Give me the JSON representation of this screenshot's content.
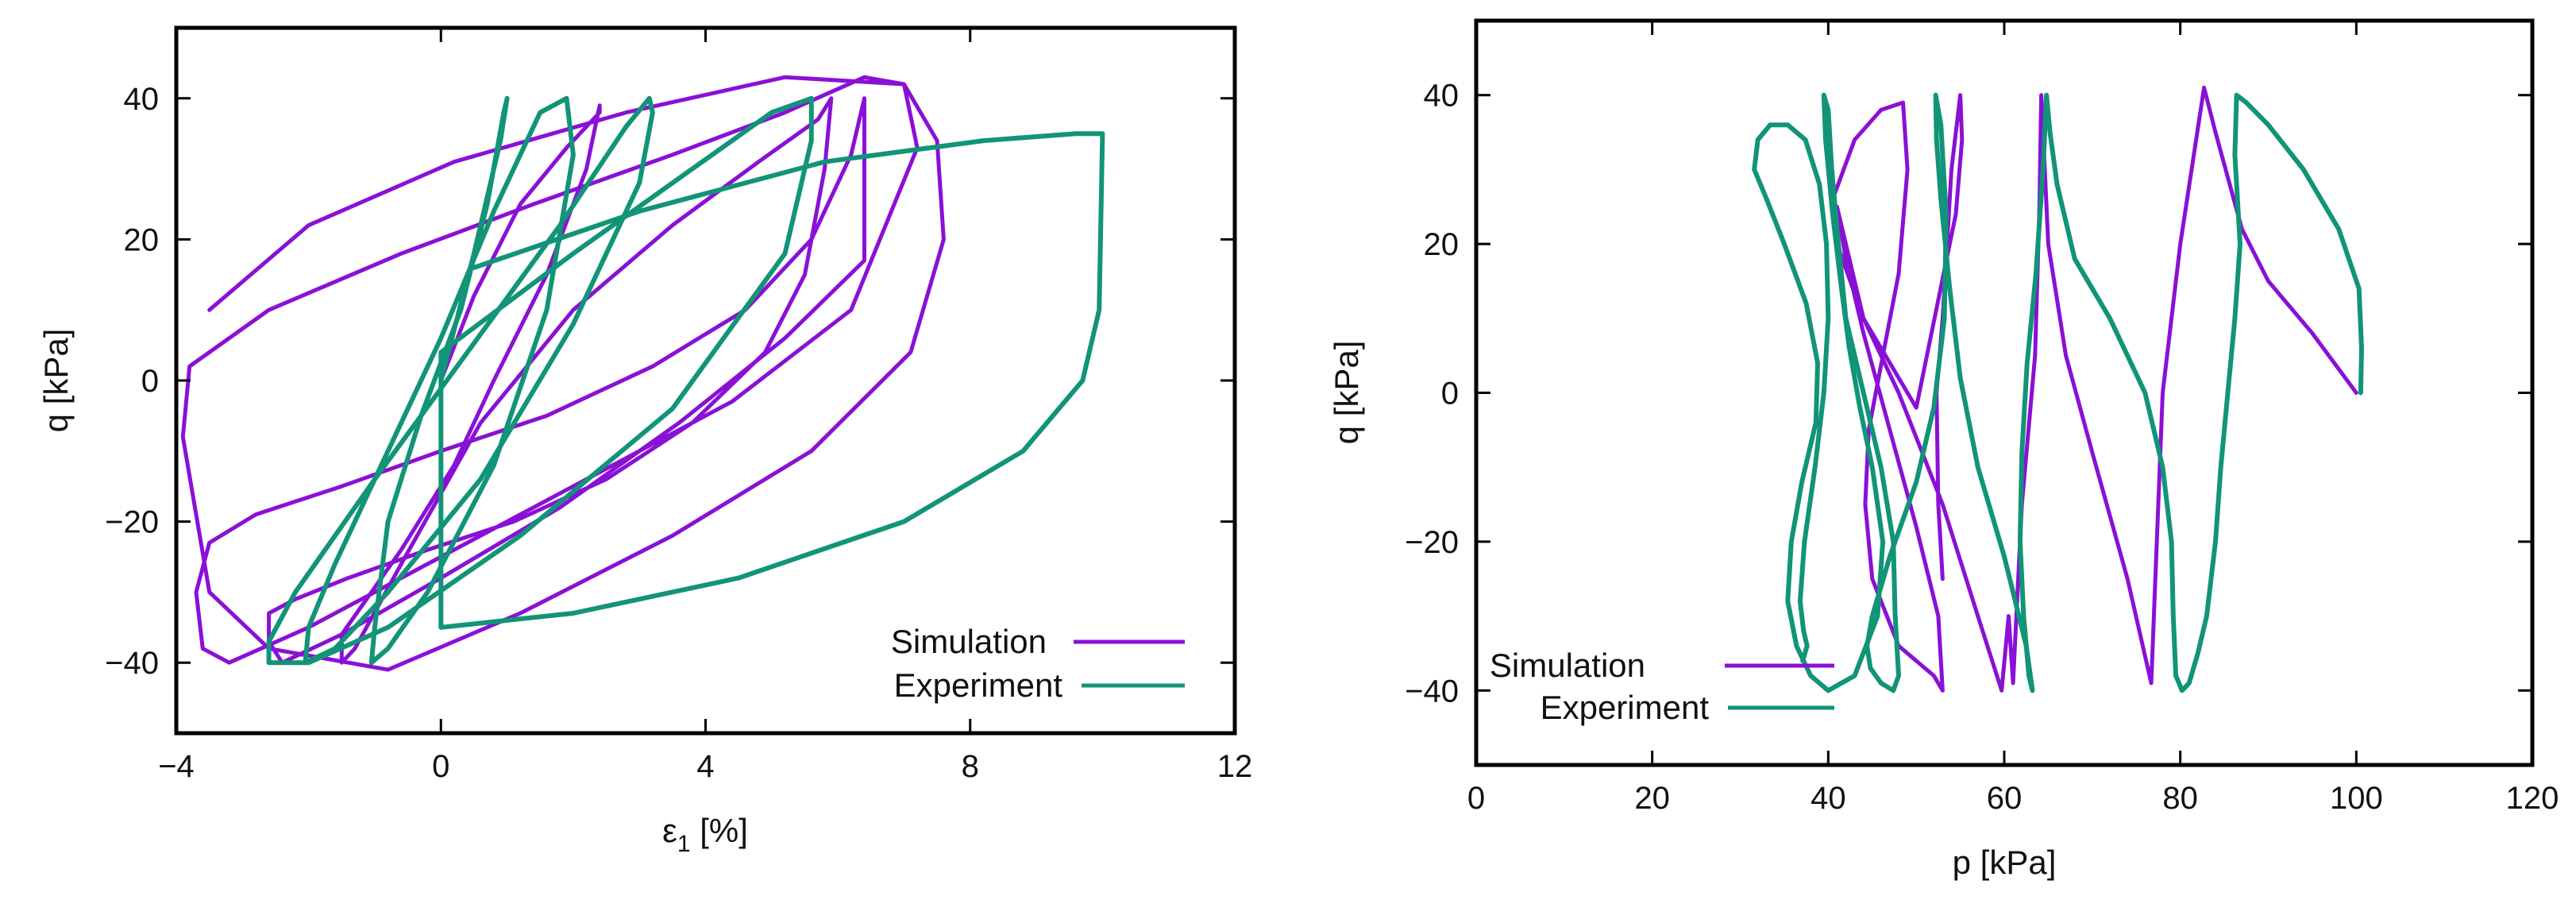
{
  "colors": {
    "simulation": "#8a10d6",
    "experiment": "#119478",
    "axis": "#000000"
  },
  "chart_data": [
    {
      "type": "line",
      "title": "",
      "xlabel": "ε1 [%]",
      "xlabel_main": "ε",
      "xlabel_sub": "1",
      "xlabel_unit": " [%]",
      "ylabel": "q [kPa]",
      "xlim": [
        -4,
        12
      ],
      "ylim": [
        -50,
        50
      ],
      "xticks": [
        -4,
        0,
        4,
        8,
        12
      ],
      "xtick_labels": [
        "−4",
        "0",
        "4",
        "8",
        "12"
      ],
      "yticks": [
        -40,
        -20,
        0,
        20,
        40
      ],
      "ytick_labels": [
        "−40",
        "−20",
        "0",
        "20",
        "40"
      ],
      "grid": false,
      "legend_position": "bottom-right",
      "legend": [
        "Simulation",
        "Experiment"
      ],
      "series": [
        {
          "name": "Simulation",
          "x": [
            0,
            0.5,
            1.2,
            1.9,
            2.4,
            2.4,
            2.2,
            1.6,
            0.8,
            0.2,
            -0.6,
            -1.2,
            -1.5,
            -1.5,
            -1.3,
            -0.6,
            0.6,
            2.0,
            3.5,
            4.8,
            5.7,
            5.9,
            5.8,
            5.5,
            4.9,
            3.8,
            2.5,
            1.1,
            -0.2,
            -1.4,
            -2.2,
            -2.6,
            -2.6,
            -2.4,
            -1.5,
            0.0,
            1.8,
            3.6,
            5.2,
            6.4,
            6.4,
            6.2,
            5.6,
            4.6,
            3.2,
            1.6,
            0.0,
            -1.5,
            -2.8,
            -3.5,
            -3.7,
            -3.6,
            -3.2,
            -2.0,
            0.0,
            2.2,
            4.4,
            6.2,
            7.2,
            7.0,
            6.4,
            5.2,
            3.5,
            1.4,
            -0.6,
            -2.6,
            -3.8,
            -3.9,
            -3.5,
            -2.6,
            -0.8,
            1.2,
            3.5,
            5.6,
            7.1,
            7.6,
            7.5,
            7.0,
            5.2,
            2.8,
            0.2,
            -2.0,
            -3.5
          ],
          "y": [
            0,
            12,
            25,
            33,
            38,
            39,
            30,
            15,
            0,
            -12,
            -24,
            -32,
            -36,
            -40,
            -38,
            -26,
            -6,
            10,
            22,
            31,
            37,
            40,
            30,
            15,
            4,
            -6,
            -14,
            -20,
            -24,
            -28,
            -31,
            -33,
            -37,
            -40,
            -36,
            -28,
            -18,
            -6,
            6,
            17,
            40,
            32,
            20,
            10,
            2,
            -5,
            -10,
            -15,
            -19,
            -23,
            -30,
            -38,
            -40,
            -35,
            -25,
            -14,
            -3,
            10,
            33,
            42,
            43,
            38,
            32,
            25,
            18,
            10,
            2,
            -8,
            -30,
            -38,
            -41,
            -33,
            -22,
            -10,
            4,
            20,
            34,
            42,
            43,
            38,
            31,
            22,
            10
          ]
        },
        {
          "name": "Experiment",
          "x": [
            0,
            0.5,
            0.9,
            1.0,
            0.95,
            0.7,
            0.3,
            -0.3,
            -0.8,
            -1.0,
            -1.05,
            -0.8,
            -0.2,
            0.8,
            1.6,
            2.0,
            1.9,
            1.5,
            0.8,
            0.0,
            -0.8,
            -1.6,
            -2.0,
            -2.05,
            -1.6,
            -0.8,
            0.6,
            2.0,
            3.0,
            3.2,
            3.15,
            2.8,
            1.8,
            0.4,
            -1.0,
            -2.2,
            -2.6,
            -2.6,
            -2.0,
            -0.8,
            1.2,
            3.5,
            5.2,
            5.6,
            5.6,
            5.0,
            3.8,
            2.0,
            0.0,
            0.0,
            0.0,
            2.0,
            4.5,
            7.0,
            8.8,
            9.7,
            9.95,
            10.0,
            9.6,
            8.2,
            5.8,
            3.0,
            0.5
          ],
          "y": [
            0,
            18,
            34,
            40,
            38,
            25,
            10,
            -5,
            -20,
            -35,
            -40,
            -38,
            -30,
            -12,
            10,
            32,
            40,
            38,
            24,
            6,
            -10,
            -26,
            -35,
            -40,
            -38,
            -30,
            -14,
            8,
            28,
            38,
            40,
            36,
            22,
            4,
            -14,
            -30,
            -37,
            -40,
            -40,
            -35,
            -22,
            -4,
            18,
            34,
            40,
            38,
            30,
            18,
            4,
            -15,
            -35,
            -33,
            -28,
            -20,
            -10,
            0,
            10,
            35,
            35,
            34,
            31,
            24,
            16
          ]
        }
      ]
    },
    {
      "type": "line",
      "title": "",
      "xlabel": "p [kPa]",
      "ylabel": "q [kPa]",
      "xlim": [
        0,
        120
      ],
      "ylim": [
        -50,
        50
      ],
      "xticks": [
        0,
        20,
        40,
        60,
        80,
        100,
        120
      ],
      "xtick_labels": [
        "0",
        "20",
        "40",
        "60",
        "80",
        "100",
        "120"
      ],
      "yticks": [
        -40,
        -20,
        0,
        20,
        40
      ],
      "ytick_labels": [
        "−40",
        "−20",
        "0",
        "20",
        "40"
      ],
      "grid": false,
      "legend_position": "bottom-left",
      "legend": [
        "Simulation",
        "Experiment"
      ],
      "series": [
        {
          "name": "Simulation",
          "x": [
            100,
            95,
            90,
            87,
            84,
            82.7,
            80,
            78,
            76.7,
            74,
            70,
            67,
            65,
            64.2,
            64,
            63.5,
            62,
            61,
            60.5,
            59.7,
            57,
            53,
            48,
            44,
            41,
            40.5,
            43,
            46,
            48.5,
            49,
            48,
            46.2,
            44.6,
            44.2,
            45,
            48,
            52,
            53,
            52.5,
            50,
            47,
            44,
            42,
            41,
            44,
            50,
            54.5,
            55.2,
            55,
            54,
            53,
            52.3,
            52.5,
            53
          ],
          "y": [
            0,
            8,
            15,
            22,
            35,
            41,
            20,
            0,
            -39,
            -25,
            -8,
            5,
            20,
            40,
            25,
            5,
            -15,
            -39,
            -30,
            -40,
            -30,
            -15,
            0,
            10,
            20,
            26,
            34,
            38,
            39,
            30,
            16,
            5,
            -5,
            -15,
            -25,
            -34,
            -38,
            -40,
            -30,
            -18,
            -5,
            8,
            18,
            25,
            10,
            -2,
            24,
            34,
            40,
            30,
            10,
            0,
            -15,
            -25
          ]
        },
        {
          "name": "Experiment",
          "x": [
            100.5,
            100.6,
            100.3,
            98,
            94,
            90,
            87.5,
            86.4,
            86.2,
            86.8,
            86.2,
            85.4,
            84.6,
            84,
            83,
            82,
            81,
            80.2,
            79.5,
            79.2,
            79,
            78,
            76,
            72,
            68,
            66,
            65.2,
            64.8,
            64.4,
            63.6,
            62.6,
            62,
            61.8,
            62.2,
            62.8,
            63.2,
            62.5,
            60,
            57,
            55,
            53.8,
            52.8,
            52.3,
            52.2,
            52.8,
            53.4,
            53.2,
            52,
            50,
            47,
            45,
            44.4,
            44.8,
            46,
            47.4,
            48,
            47.6,
            47.4,
            46,
            44,
            42,
            41,
            40.4,
            40,
            39.5,
            39.7,
            40.5,
            41.5,
            42.4,
            43.6,
            45,
            46.2,
            45.6,
            43,
            40,
            38,
            36.4,
            35.4,
            35.8,
            37,
            38.6,
            38.8,
            37.5,
            35,
            33,
            31.6,
            32,
            33.4,
            35.4,
            37.4,
            39,
            39.8,
            40,
            39.5,
            38.5,
            37.3,
            36.8,
            37.2,
            37.6,
            37.1
          ],
          "y": [
            0,
            6,
            14,
            22,
            30,
            36,
            39,
            40,
            32,
            20,
            10,
            0,
            -10,
            -20,
            -30,
            -35,
            -39,
            -40,
            -38,
            -30,
            -20,
            -10,
            0,
            10,
            18,
            28,
            35,
            40,
            30,
            16,
            4,
            -8,
            -20,
            -30,
            -38,
            -40,
            -34,
            -22,
            -10,
            2,
            14,
            26,
            34,
            40,
            36,
            24,
            10,
            -2,
            -12,
            -22,
            -30,
            -34,
            -37,
            -39,
            -40,
            -38,
            -30,
            -20,
            -10,
            0,
            10,
            22,
            30,
            38,
            40,
            34,
            24,
            14,
            6,
            -2,
            -10,
            -20,
            -30,
            -38,
            -40,
            -38,
            -34,
            -28,
            -20,
            -12,
            -4,
            4,
            12,
            20,
            26,
            30,
            34,
            36,
            36,
            34,
            28,
            20,
            10,
            0,
            -10,
            -20,
            -28,
            -32,
            -34,
            -36
          ]
        }
      ]
    }
  ]
}
